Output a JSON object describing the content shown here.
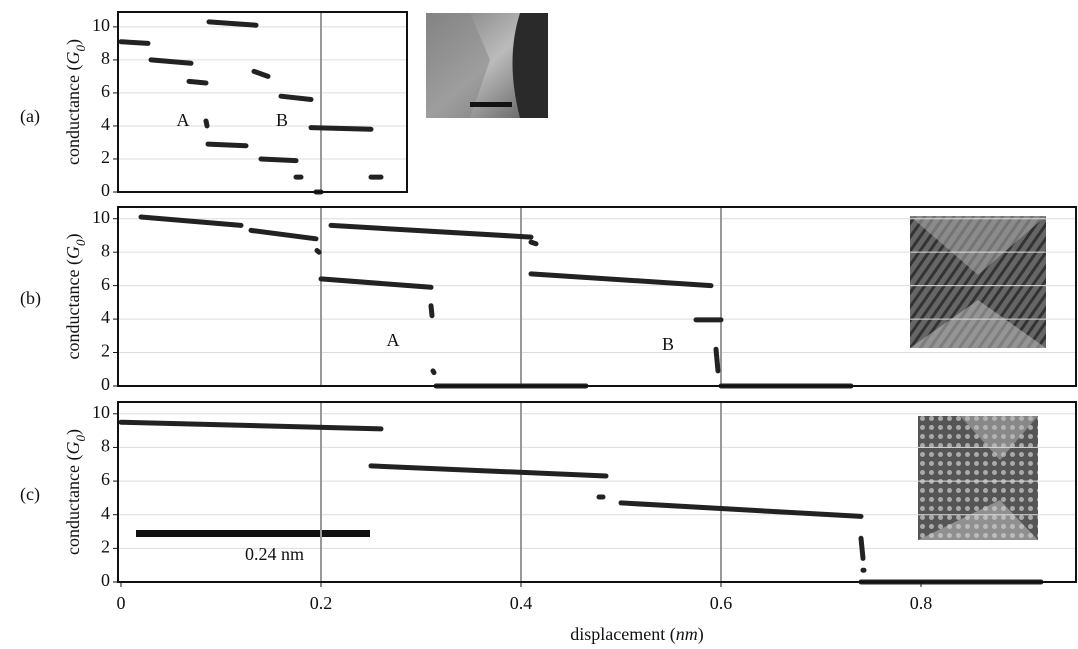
{
  "chart_data": [
    {
      "type": "line",
      "label": "(a)",
      "ylabel": [
        "conductance (",
        "G",
        "0",
        ")"
      ],
      "xlim": [
        -0.003,
        0.286
      ],
      "ylim": [
        0,
        10.9
      ],
      "yticks": [
        0,
        2,
        4,
        6,
        8,
        10
      ],
      "grid": true,
      "color": "#222",
      "vlines": [
        0.2
      ],
      "annotations": [
        "A",
        "B"
      ],
      "x": [
        0,
        0.027,
        null,
        0.03,
        0.07,
        null,
        0.068,
        0.085,
        null,
        0.085,
        0.086,
        null,
        0.087,
        0.125,
        null,
        0.088,
        0.135,
        null,
        0.133,
        0.147,
        null,
        0.14,
        0.175,
        null,
        0.175,
        0.18,
        null,
        0.16,
        0.19,
        null,
        0.195,
        0.2,
        null,
        0.19,
        0.25,
        null,
        0.25,
        0.26
      ],
      "values": [
        9.1,
        9.0,
        null,
        8.0,
        7.8,
        null,
        6.7,
        6.6,
        null,
        4.3,
        4.0,
        null,
        2.9,
        2.8,
        null,
        10.3,
        10.1,
        null,
        7.3,
        7.0,
        null,
        2.0,
        1.9,
        null,
        0.9,
        0.9,
        null,
        5.8,
        5.6,
        null,
        0,
        0,
        null,
        3.9,
        3.8,
        null,
        0.9,
        0.9
      ]
    },
    {
      "type": "line",
      "label": "(b)",
      "ylabel": [
        "conductance (",
        "G",
        "0",
        ")"
      ],
      "xlim": [
        -0.003,
        0.955
      ],
      "ylim": [
        0,
        10.7
      ],
      "yticks": [
        0,
        2,
        4,
        6,
        8,
        10
      ],
      "grid": true,
      "color": "#222",
      "vlines": [
        0.2,
        0.4,
        0.6
      ],
      "annotations": [
        "A",
        "B"
      ],
      "x": [
        0.02,
        0.12,
        null,
        0.13,
        0.195,
        null,
        0.196,
        0.198,
        null,
        0.2,
        0.31,
        null,
        0.31,
        0.311,
        null,
        0.312,
        0.313,
        null,
        0.315,
        0.465,
        null,
        0.21,
        0.41,
        null,
        0.41,
        0.415,
        null,
        0.41,
        0.59,
        null,
        0.575,
        0.6,
        null,
        0.595,
        0.597,
        null,
        0.6,
        0.73
      ],
      "values": [
        10.1,
        9.6,
        null,
        9.3,
        8.8,
        null,
        8.1,
        8.0,
        null,
        6.4,
        5.9,
        null,
        4.8,
        4.2,
        null,
        0.9,
        0.8,
        null,
        0,
        0,
        null,
        9.6,
        8.9,
        null,
        8.6,
        8.5,
        null,
        6.7,
        6.0,
        null,
        3.95,
        3.95,
        null,
        2.2,
        0.9,
        null,
        0,
        0
      ]
    },
    {
      "type": "line",
      "label": "(c)",
      "ylabel": [
        "conductance (",
        "G",
        "0",
        ")"
      ],
      "xlabel": [
        "displacement (",
        "nm",
        ")"
      ],
      "xlim": [
        -0.003,
        0.955
      ],
      "ylim": [
        0,
        10.7
      ],
      "yticks": [
        0,
        2,
        4,
        6,
        8,
        10
      ],
      "xticks": [
        0,
        0.2,
        0.4,
        0.6,
        0.8
      ],
      "grid": true,
      "color": "#222",
      "vlines": [
        0.2,
        0.4,
        0.6
      ],
      "annotations": [
        "0.24 nm"
      ],
      "x": [
        0,
        0.26,
        null,
        0.25,
        0.485,
        null,
        0.478,
        0.482,
        null,
        0.5,
        0.74,
        null,
        0.74,
        0.742,
        null,
        0.742,
        0.743,
        null,
        0.74,
        0.92
      ],
      "values": [
        9.5,
        9.1,
        null,
        6.9,
        6.3,
        null,
        5.05,
        5.05,
        null,
        4.7,
        3.9,
        null,
        2.6,
        1.4,
        null,
        0.7,
        0.7,
        null,
        0,
        0
      ]
    }
  ]
}
